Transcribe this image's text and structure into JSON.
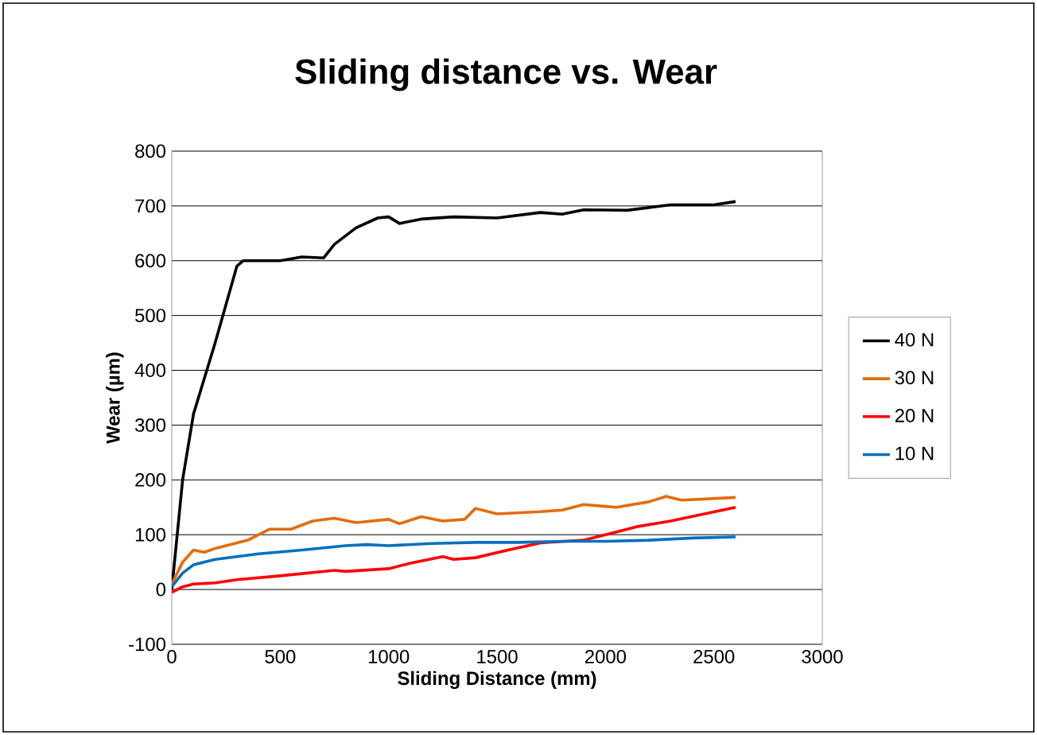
{
  "chart_data": {
    "type": "line",
    "title": "Sliding distance vs. Wear",
    "xlabel": "Sliding Distance (mm)",
    "ylabel": "Wear (µm)",
    "xlim": [
      0,
      3000
    ],
    "xticks": [
      0,
      500,
      1000,
      1500,
      2000,
      2500,
      3000
    ],
    "ylim": [
      -100,
      800
    ],
    "yticks": [
      -100,
      0,
      100,
      200,
      300,
      400,
      500,
      600,
      700,
      800
    ],
    "grid": "y",
    "legend": "right",
    "marker": "none",
    "line_style": "solid",
    "series": [
      {
        "name": "40 N",
        "color": "#000000",
        "x": [
          0,
          50,
          100,
          200,
          300,
          330,
          500,
          600,
          700,
          750,
          850,
          950,
          1000,
          1050,
          1150,
          1300,
          1500,
          1700,
          1800,
          1900,
          2100,
          2300,
          2500,
          2600
        ],
        "values": [
          0,
          200,
          320,
          450,
          590,
          600,
          600,
          607,
          605,
          630,
          660,
          678,
          680,
          668,
          676,
          680,
          678,
          688,
          685,
          693,
          692,
          702,
          702,
          708
        ]
      },
      {
        "name": "30 N",
        "color": "#e46c0a",
        "x": [
          0,
          50,
          100,
          150,
          200,
          350,
          450,
          550,
          650,
          750,
          850,
          1000,
          1050,
          1150,
          1250,
          1350,
          1400,
          1500,
          1700,
          1800,
          1900,
          2050,
          2200,
          2280,
          2350,
          2600
        ],
        "values": [
          10,
          50,
          72,
          68,
          75,
          90,
          110,
          110,
          125,
          130,
          122,
          128,
          120,
          133,
          125,
          128,
          148,
          138,
          142,
          145,
          155,
          150,
          160,
          170,
          163,
          168
        ]
      },
      {
        "name": "20 N",
        "color": "#ff0000",
        "x": [
          0,
          50,
          100,
          200,
          300,
          500,
          750,
          800,
          1000,
          1100,
          1250,
          1300,
          1400,
          1550,
          1700,
          1900,
          2000,
          2150,
          2300,
          2600
        ],
        "values": [
          -5,
          5,
          10,
          12,
          18,
          25,
          35,
          33,
          38,
          48,
          60,
          55,
          58,
          72,
          85,
          90,
          100,
          115,
          125,
          150
        ]
      },
      {
        "name": "10 N",
        "color": "#0070c0",
        "x": [
          0,
          50,
          100,
          200,
          400,
          600,
          800,
          900,
          1000,
          1200,
          1400,
          1600,
          1800,
          2000,
          2200,
          2400,
          2600
        ],
        "values": [
          5,
          30,
          45,
          55,
          65,
          72,
          80,
          82,
          80,
          84,
          86,
          86,
          88,
          88,
          90,
          94,
          96
        ]
      }
    ]
  }
}
